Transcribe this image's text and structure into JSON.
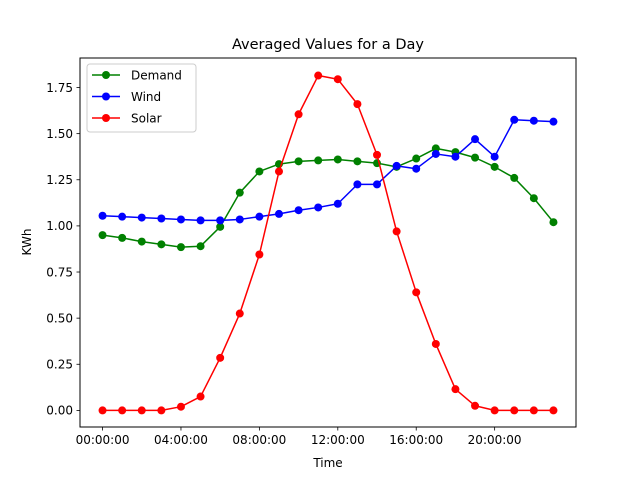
{
  "chart_data": {
    "type": "line",
    "title": "Averaged Values for a Day",
    "xlabel": "Time",
    "ylabel": "KWh",
    "x": [
      "00:00:00",
      "01:00:00",
      "02:00:00",
      "03:00:00",
      "04:00:00",
      "05:00:00",
      "06:00:00",
      "07:00:00",
      "08:00:00",
      "09:00:00",
      "10:00:00",
      "11:00:00",
      "12:00:00",
      "13:00:00",
      "14:00:00",
      "15:00:00",
      "16:00:00",
      "17:00:00",
      "18:00:00",
      "19:00:00",
      "20:00:00",
      "21:00:00",
      "22:00:00",
      "23:00:00"
    ],
    "xticks": [
      "00:00:00",
      "04:00:00",
      "08:00:00",
      "12:00:00",
      "16:00:00",
      "20:00:00"
    ],
    "yticks": [
      "0.00",
      "0.25",
      "0.50",
      "0.75",
      "1.00",
      "1.25",
      "1.50",
      "1.75"
    ],
    "xlim": [
      -1.15,
      24.15
    ],
    "ylim": [
      -0.09,
      1.91
    ],
    "grid": false,
    "legend": "top-left",
    "series": [
      {
        "name": "Demand",
        "color": "#008000",
        "values": [
          0.95,
          0.935,
          0.915,
          0.9,
          0.885,
          0.89,
          0.995,
          1.18,
          1.295,
          1.335,
          1.35,
          1.355,
          1.36,
          1.35,
          1.34,
          1.32,
          1.365,
          1.42,
          1.4,
          1.37,
          1.32,
          1.26,
          1.15,
          1.02
        ]
      },
      {
        "name": "Wind",
        "color": "#0000ff",
        "values": [
          1.055,
          1.05,
          1.045,
          1.04,
          1.035,
          1.03,
          1.03,
          1.035,
          1.05,
          1.065,
          1.085,
          1.1,
          1.12,
          1.225,
          1.225,
          1.325,
          1.31,
          1.39,
          1.375,
          1.47,
          1.375,
          1.575,
          1.57,
          1.565
        ]
      },
      {
        "name": "Solar",
        "color": "#ff0000",
        "values": [
          0.0,
          0.0,
          0.0,
          0.0,
          0.02,
          0.075,
          0.285,
          0.525,
          0.845,
          1.295,
          1.605,
          1.815,
          1.795,
          1.66,
          1.385,
          0.97,
          0.64,
          0.36,
          0.115,
          0.025,
          0.0,
          0.0,
          0.0,
          0.0
        ]
      }
    ]
  }
}
